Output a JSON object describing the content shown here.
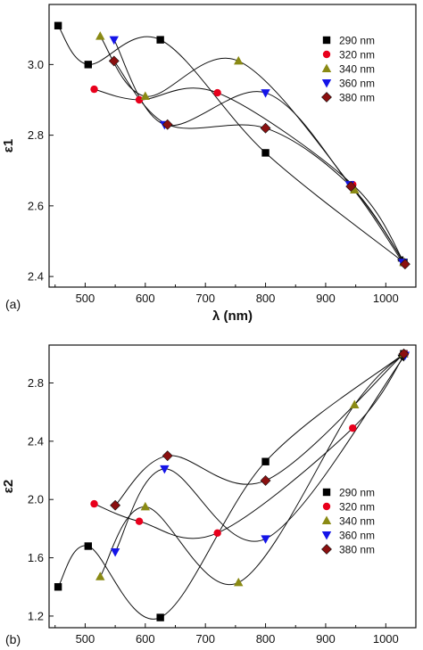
{
  "chart_data": [
    {
      "type": "scatter",
      "panel": "(a)",
      "xlabel": "λ (nm)",
      "ylabel": "ε1",
      "xlim": [
        440,
        1050
      ],
      "ylim": [
        2.37,
        3.17
      ],
      "xticks": [
        500,
        600,
        700,
        800,
        900,
        1000
      ],
      "yticks": [
        2.4,
        2.6,
        2.8,
        3.0
      ],
      "ytick_labels": [
        "2.4",
        "2.6",
        "2.8",
        "3.0"
      ],
      "legend_position": "top-right",
      "series": [
        {
          "name": "290 nm",
          "marker": "square",
          "color": "#000000",
          "points": [
            [
              455,
              3.11
            ],
            [
              505,
              3.0
            ],
            [
              625,
              3.07
            ],
            [
              800,
              2.75
            ],
            [
              1030,
              2.44
            ]
          ]
        },
        {
          "name": "320 nm",
          "marker": "circle",
          "color": "#e8001c",
          "points": [
            [
              515,
              2.93
            ],
            [
              590,
              2.9
            ],
            [
              720,
              2.92
            ],
            [
              945,
              2.66
            ],
            [
              1032,
              2.435
            ]
          ]
        },
        {
          "name": "340 nm",
          "marker": "triangle-up",
          "color": "#8a8a14",
          "points": [
            [
              525,
              3.08
            ],
            [
              600,
              2.91
            ],
            [
              755,
              3.01
            ],
            [
              948,
              2.645
            ],
            [
              1030,
              2.44
            ]
          ]
        },
        {
          "name": "360 nm",
          "marker": "triangle-down",
          "color": "#1414e8",
          "points": [
            [
              548,
              3.07
            ],
            [
              632,
              2.83
            ],
            [
              800,
              2.92
            ],
            [
              940,
              2.66
            ],
            [
              1028,
              2.44
            ]
          ]
        },
        {
          "name": "380 nm",
          "marker": "diamond",
          "color": "#8b1010",
          "points": [
            [
              548,
              3.01
            ],
            [
              637,
              2.83
            ],
            [
              800,
              2.82
            ],
            [
              942,
              2.655
            ],
            [
              1032,
              2.435
            ]
          ]
        }
      ]
    },
    {
      "type": "scatter",
      "panel": "(b)",
      "xlabel": "λ (nm)",
      "ylabel": "ε2",
      "xlim": [
        440,
        1050
      ],
      "ylim": [
        1.12,
        3.06
      ],
      "xticks": [
        500,
        600,
        700,
        800,
        900,
        1000
      ],
      "yticks": [
        1.2,
        1.6,
        2.0,
        2.4,
        2.8
      ],
      "ytick_labels": [
        "1.2",
        "1.6",
        "2.0",
        "2.4",
        "2.8"
      ],
      "legend_position": "right",
      "series": [
        {
          "name": "290 nm",
          "marker": "square",
          "color": "#000000",
          "points": [
            [
              455,
              1.4
            ],
            [
              505,
              1.68
            ],
            [
              625,
              1.19
            ],
            [
              800,
              2.26
            ],
            [
              1030,
              3.0
            ]
          ]
        },
        {
          "name": "320 nm",
          "marker": "circle",
          "color": "#e8001c",
          "points": [
            [
              515,
              1.97
            ],
            [
              590,
              1.85
            ],
            [
              720,
              1.77
            ],
            [
              945,
              2.49
            ],
            [
              1032,
              3.0
            ]
          ]
        },
        {
          "name": "340 nm",
          "marker": "triangle-up",
          "color": "#8a8a14",
          "points": [
            [
              525,
              1.47
            ],
            [
              600,
              1.95
            ],
            [
              755,
              1.43
            ],
            [
              948,
              2.65
            ],
            [
              1030,
              3.0
            ]
          ]
        },
        {
          "name": "360 nm",
          "marker": "triangle-down",
          "color": "#1414e8",
          "points": [
            [
              550,
              1.64
            ],
            [
              632,
              2.21
            ],
            [
              800,
              1.73
            ],
            [
              1032,
              2.99
            ]
          ]
        },
        {
          "name": "380 nm",
          "marker": "diamond",
          "color": "#8b1010",
          "points": [
            [
              550,
              1.96
            ],
            [
              637,
              2.3
            ],
            [
              800,
              2.13
            ],
            [
              1030,
              3.0
            ]
          ]
        }
      ]
    }
  ]
}
